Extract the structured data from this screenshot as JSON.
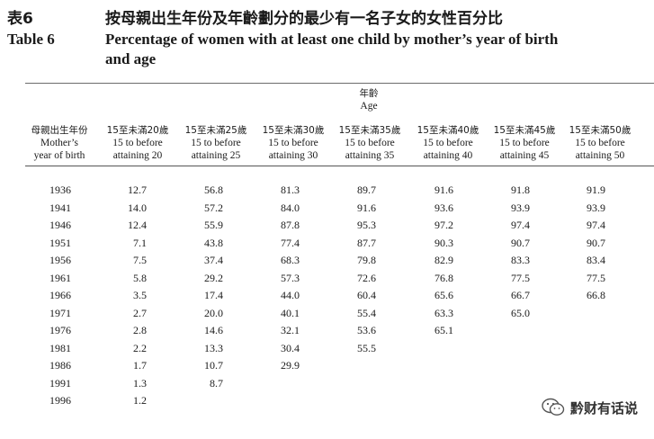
{
  "title": {
    "zh_label": "表6",
    "zh_text": "按母親出生年份及年齡劃分的最少有一名子女的女性百分比",
    "en_label": "Table 6",
    "en_text_line1": "Percentage of women with at least one child by mother’s year of birth",
    "en_text_line2": "and age"
  },
  "header": {
    "age_zh": "年齡",
    "age_en": "Age",
    "row_header_zh": "母親出生年份",
    "row_header_en1": "Mother’s",
    "row_header_en2": "year of birth",
    "columns": [
      {
        "zh": "15至未滿20歲",
        "en1": "15 to before",
        "en2": "attaining 20"
      },
      {
        "zh": "15至未滿25歲",
        "en1": "15 to before",
        "en2": "attaining 25"
      },
      {
        "zh": "15至未滿30歲",
        "en1": "15 to before",
        "en2": "attaining 30"
      },
      {
        "zh": "15至未滿35歲",
        "en1": "15 to before",
        "en2": "attaining 35"
      },
      {
        "zh": "15至未滿40歲",
        "en1": "15 to before",
        "en2": "attaining 40"
      },
      {
        "zh": "15至未滿45歲",
        "en1": "15 to before",
        "en2": "attaining 45"
      },
      {
        "zh": "15至未滿50歲",
        "en1": "15 to before",
        "en2": "attaining 50"
      }
    ]
  },
  "rows": [
    {
      "year": "1936",
      "values": [
        "12.7",
        "56.8",
        "81.3",
        "89.7",
        "91.6",
        "91.8",
        "91.9"
      ]
    },
    {
      "year": "1941",
      "values": [
        "14.0",
        "57.2",
        "84.0",
        "91.6",
        "93.6",
        "93.9",
        "93.9"
      ]
    },
    {
      "year": "1946",
      "values": [
        "12.4",
        "55.9",
        "87.8",
        "95.3",
        "97.2",
        "97.4",
        "97.4"
      ]
    },
    {
      "year": "1951",
      "values": [
        "7.1",
        "43.8",
        "77.4",
        "87.7",
        "90.3",
        "90.7",
        "90.7"
      ]
    },
    {
      "year": "1956",
      "values": [
        "7.5",
        "37.4",
        "68.3",
        "79.8",
        "82.9",
        "83.3",
        "83.4"
      ]
    },
    {
      "year": "1961",
      "values": [
        "5.8",
        "29.2",
        "57.3",
        "72.6",
        "76.8",
        "77.5",
        "77.5"
      ]
    },
    {
      "year": "1966",
      "values": [
        "3.5",
        "17.4",
        "44.0",
        "60.4",
        "65.6",
        "66.7",
        "66.8"
      ]
    },
    {
      "year": "1971",
      "values": [
        "2.7",
        "20.0",
        "40.1",
        "55.4",
        "63.3",
        "65.0",
        ""
      ]
    },
    {
      "year": "1976",
      "values": [
        "2.8",
        "14.6",
        "32.1",
        "53.6",
        "65.1",
        "",
        ""
      ]
    },
    {
      "year": "1981",
      "values": [
        "2.2",
        "13.3",
        "30.4",
        "55.5",
        "",
        "",
        ""
      ]
    },
    {
      "year": "1986",
      "values": [
        "1.7",
        "10.7",
        "29.9",
        "",
        "",
        "",
        ""
      ]
    },
    {
      "year": "1991",
      "values": [
        "1.3",
        "8.7",
        "",
        "",
        "",
        "",
        ""
      ]
    },
    {
      "year": "1996",
      "values": [
        "1.2",
        "",
        "",
        "",
        "",
        "",
        ""
      ]
    }
  ],
  "watermark": {
    "text": "黔财有话说",
    "icon": "wechat-icon"
  }
}
